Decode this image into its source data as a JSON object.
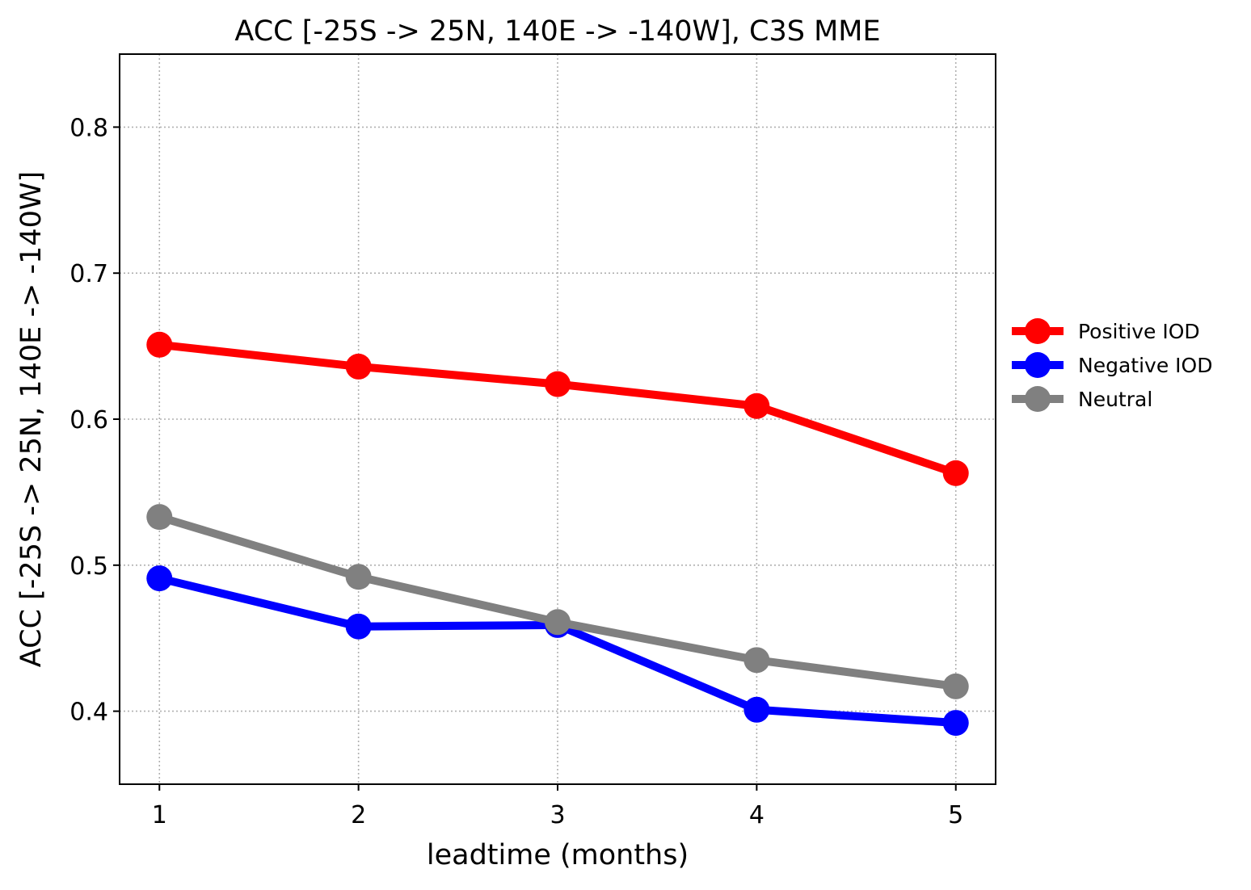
{
  "chart_data": {
    "type": "line",
    "title": "ACC [-25S -> 25N, 140E -> -140W], C3S MME",
    "xlabel": "leadtime (months)",
    "ylabel": "ACC [-25S -> 25N, 140E -> -140W]",
    "x": [
      1,
      2,
      3,
      4,
      5
    ],
    "xticks": [
      "1",
      "2",
      "3",
      "4",
      "5"
    ],
    "xlim": [
      0.8,
      5.2
    ],
    "ylim": [
      0.35,
      0.85
    ],
    "yticks": [
      "0.4",
      "0.5",
      "0.6",
      "0.7",
      "0.8"
    ],
    "grid": true,
    "legend_position": "right-outside",
    "series": [
      {
        "name": "Positive IOD",
        "color": "#ff0000",
        "values": [
          0.651,
          0.636,
          0.624,
          0.609,
          0.563
        ]
      },
      {
        "name": "Negative IOD",
        "color": "#0000ff",
        "values": [
          0.491,
          0.458,
          0.459,
          0.401,
          0.392
        ]
      },
      {
        "name": "Neutral",
        "color": "#808080",
        "values": [
          0.533,
          0.492,
          0.461,
          0.435,
          0.417
        ]
      }
    ]
  }
}
